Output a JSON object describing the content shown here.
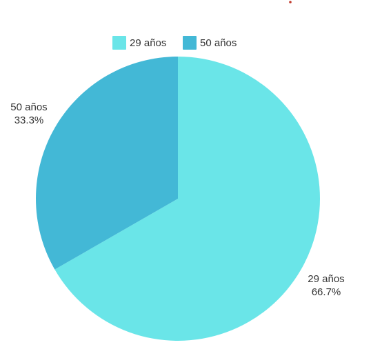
{
  "chart_data": {
    "type": "pie",
    "title": "",
    "slices": [
      {
        "label": "29 años",
        "value": 66.7,
        "percent_label": "66.7%",
        "color": "#6ae5e8"
      },
      {
        "label": "50 años",
        "value": 33.3,
        "percent_label": "33.3%",
        "color": "#43b8d6"
      }
    ],
    "legend": {
      "placement": "top",
      "items": [
        "29 años",
        "50 años"
      ]
    }
  },
  "colors": {
    "accent_dot": "#c0392b",
    "text": "#333333"
  }
}
